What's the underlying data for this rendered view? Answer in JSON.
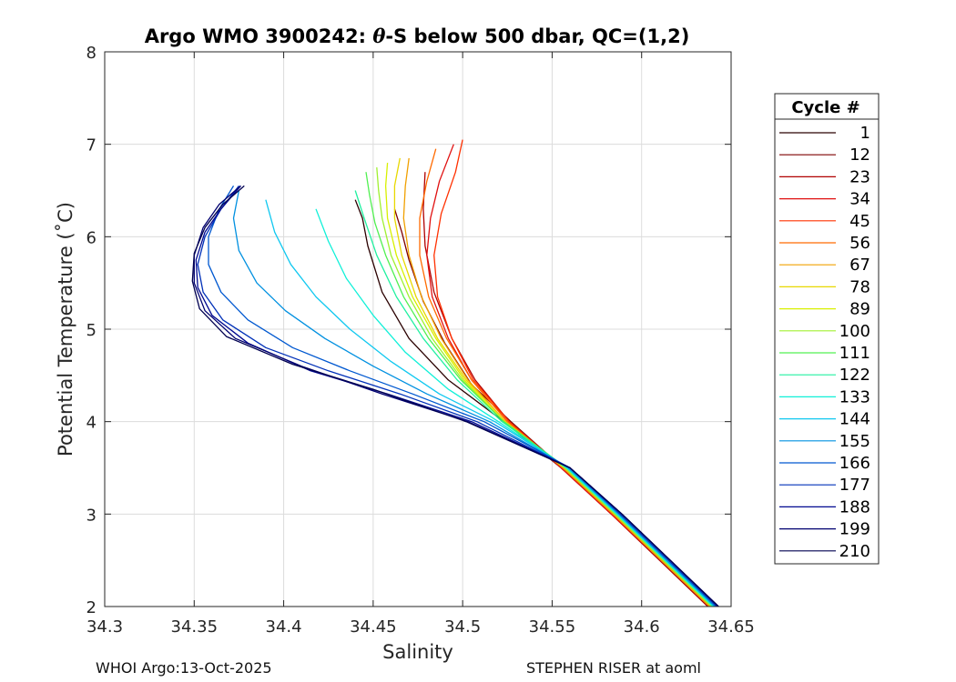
{
  "chart_data": {
    "type": "line",
    "title_prefix": "Argo WMO 3900242: ",
    "title_theta": "θ",
    "title_suffix": "-S below 500 dbar,  QC=(1,2)",
    "xlabel": "Salinity",
    "ylabel": "Potential Temperature (˚C)",
    "xlim": [
      34.3,
      34.65
    ],
    "ylim": [
      2,
      8
    ],
    "x_ticks": [
      34.3,
      34.35,
      34.4,
      34.45,
      34.5,
      34.55,
      34.6,
      34.65
    ],
    "x_tick_labels": [
      "34.3",
      "34.35",
      "34.4",
      "34.45",
      "34.5",
      "34.55",
      "34.6",
      "34.65"
    ],
    "y_ticks": [
      2,
      3,
      4,
      5,
      6,
      7,
      8
    ],
    "y_tick_labels": [
      "2",
      "3",
      "4",
      "5",
      "6",
      "7",
      "8"
    ],
    "grid": true,
    "legend": {
      "title": "Cycle #",
      "placement": "outside-right",
      "entries": [
        {
          "label": "1",
          "color": "#2a0000"
        },
        {
          "label": "12",
          "color": "#7f0000"
        },
        {
          "label": "23",
          "color": "#b00000"
        },
        {
          "label": "34",
          "color": "#e01010"
        },
        {
          "label": "45",
          "color": "#ff3000"
        },
        {
          "label": "56",
          "color": "#ff6a00"
        },
        {
          "label": "67",
          "color": "#f0a000"
        },
        {
          "label": "78",
          "color": "#e8d800"
        },
        {
          "label": "89",
          "color": "#d8f000"
        },
        {
          "label": "100",
          "color": "#a0f030"
        },
        {
          "label": "111",
          "color": "#50f050"
        },
        {
          "label": "122",
          "color": "#20f0a0"
        },
        {
          "label": "133",
          "color": "#10f0d8"
        },
        {
          "label": "144",
          "color": "#10c8f0"
        },
        {
          "label": "155",
          "color": "#0090e0"
        },
        {
          "label": "166",
          "color": "#0058d0"
        },
        {
          "label": "177",
          "color": "#0030b8"
        },
        {
          "label": "188",
          "color": "#000890"
        },
        {
          "label": "199",
          "color": "#000070"
        },
        {
          "label": "210",
          "color": "#000050"
        }
      ]
    },
    "series": [
      {
        "name": "1",
        "color": "#2a0000",
        "x": [
          34.64,
          34.612,
          34.585,
          34.555,
          34.523,
          34.492,
          34.47,
          34.455,
          34.447,
          34.444,
          34.44
        ],
        "y": [
          2.0,
          2.5,
          3.0,
          3.5,
          4.0,
          4.45,
          4.9,
          5.4,
          5.9,
          6.2,
          6.4
        ]
      },
      {
        "name": "12",
        "color": "#7f0000",
        "x": [
          34.638,
          34.611,
          34.584,
          34.556,
          34.527,
          34.505,
          34.49,
          34.478,
          34.47,
          34.466,
          34.462
        ],
        "y": [
          2.0,
          2.5,
          3.0,
          3.5,
          4.0,
          4.4,
          4.85,
          5.3,
          5.75,
          6.05,
          6.3
        ]
      },
      {
        "name": "23",
        "color": "#b00000",
        "x": [
          34.637,
          34.61,
          34.583,
          34.555,
          34.526,
          34.507,
          34.494,
          34.484,
          34.479,
          34.478,
          34.479
        ],
        "y": [
          2.0,
          2.5,
          3.0,
          3.5,
          4.0,
          4.45,
          4.9,
          5.4,
          5.9,
          6.3,
          6.7
        ]
      },
      {
        "name": "34",
        "color": "#e01010",
        "x": [
          34.638,
          34.611,
          34.583,
          34.555,
          34.525,
          34.505,
          34.492,
          34.483,
          34.48,
          34.482,
          34.487,
          34.495
        ],
        "y": [
          2.0,
          2.5,
          3.0,
          3.5,
          4.0,
          4.45,
          4.9,
          5.35,
          5.8,
          6.2,
          6.6,
          7.0
        ]
      },
      {
        "name": "45",
        "color": "#ff3000",
        "x": [
          34.639,
          34.612,
          34.584,
          34.556,
          34.526,
          34.506,
          34.494,
          34.486,
          34.484,
          34.488,
          34.496,
          34.5
        ],
        "y": [
          2.0,
          2.5,
          3.0,
          3.5,
          4.0,
          4.45,
          4.9,
          5.35,
          5.8,
          6.25,
          6.7,
          7.05
        ]
      },
      {
        "name": "56",
        "color": "#ff6a00",
        "x": [
          34.638,
          34.611,
          34.584,
          34.556,
          34.525,
          34.505,
          34.491,
          34.481,
          34.476,
          34.476,
          34.48,
          34.485
        ],
        "y": [
          2.0,
          2.5,
          3.0,
          3.5,
          4.0,
          4.45,
          4.9,
          5.35,
          5.8,
          6.2,
          6.6,
          6.95
        ]
      },
      {
        "name": "67",
        "color": "#f0a000",
        "x": [
          34.638,
          34.611,
          34.584,
          34.556,
          34.524,
          34.503,
          34.488,
          34.477,
          34.47,
          34.467,
          34.468,
          34.47
        ],
        "y": [
          2.0,
          2.5,
          3.0,
          3.5,
          4.0,
          4.45,
          4.9,
          5.35,
          5.8,
          6.2,
          6.55,
          6.85
        ]
      },
      {
        "name": "78",
        "color": "#e8d800",
        "x": [
          34.639,
          34.612,
          34.585,
          34.557,
          34.524,
          34.502,
          34.486,
          34.474,
          34.466,
          34.462,
          34.462,
          34.465
        ],
        "y": [
          2.0,
          2.5,
          3.0,
          3.5,
          4.0,
          4.45,
          4.9,
          5.35,
          5.8,
          6.2,
          6.55,
          6.85
        ]
      },
      {
        "name": "89",
        "color": "#d8f000",
        "x": [
          34.639,
          34.612,
          34.585,
          34.557,
          34.523,
          34.501,
          34.485,
          34.472,
          34.463,
          34.458,
          34.457,
          34.458
        ],
        "y": [
          2.0,
          2.5,
          3.0,
          3.5,
          4.0,
          4.45,
          4.9,
          5.35,
          5.8,
          6.2,
          6.55,
          6.8
        ]
      },
      {
        "name": "100",
        "color": "#a0f030",
        "x": [
          34.639,
          34.612,
          34.585,
          34.557,
          34.523,
          34.5,
          34.483,
          34.47,
          34.46,
          34.455,
          34.453,
          34.452
        ],
        "y": [
          2.0,
          2.5,
          3.0,
          3.5,
          4.0,
          4.45,
          4.9,
          5.35,
          5.8,
          6.2,
          6.5,
          6.75
        ]
      },
      {
        "name": "111",
        "color": "#50f050",
        "x": [
          34.64,
          34.613,
          34.586,
          34.558,
          34.523,
          34.499,
          34.481,
          34.467,
          34.457,
          34.451,
          34.448,
          34.446
        ],
        "y": [
          2.0,
          2.5,
          3.0,
          3.5,
          4.0,
          4.45,
          4.9,
          5.35,
          5.8,
          6.15,
          6.45,
          6.7
        ]
      },
      {
        "name": "122",
        "color": "#20f0a0",
        "x": [
          34.64,
          34.613,
          34.586,
          34.558,
          34.522,
          34.497,
          34.478,
          34.463,
          34.452,
          34.445,
          34.44
        ],
        "y": [
          2.0,
          2.5,
          3.0,
          3.5,
          4.0,
          4.45,
          4.9,
          5.35,
          5.8,
          6.2,
          6.5
        ]
      },
      {
        "name": "133",
        "color": "#10f0d8",
        "x": [
          34.64,
          34.613,
          34.586,
          34.558,
          34.52,
          34.492,
          34.468,
          34.45,
          34.435,
          34.425,
          34.418
        ],
        "y": [
          2.0,
          2.5,
          3.0,
          3.5,
          4.0,
          4.35,
          4.75,
          5.15,
          5.55,
          5.95,
          6.3
        ]
      },
      {
        "name": "144",
        "color": "#10c8f0",
        "x": [
          34.641,
          34.614,
          34.587,
          34.559,
          34.518,
          34.487,
          34.46,
          34.437,
          34.418,
          34.404,
          34.395,
          34.39
        ],
        "y": [
          2.0,
          2.5,
          3.0,
          3.5,
          4.0,
          4.3,
          4.65,
          5.0,
          5.35,
          5.7,
          6.05,
          6.4
        ]
      },
      {
        "name": "155",
        "color": "#0090e0",
        "x": [
          34.641,
          34.614,
          34.587,
          34.559,
          34.515,
          34.48,
          34.45,
          34.423,
          34.401,
          34.385,
          34.375,
          34.372,
          34.375
        ],
        "y": [
          2.0,
          2.5,
          3.0,
          3.5,
          4.0,
          4.3,
          4.6,
          4.9,
          5.2,
          5.5,
          5.85,
          6.2,
          6.5
        ]
      },
      {
        "name": "166",
        "color": "#0058d0",
        "x": [
          34.642,
          34.615,
          34.588,
          34.56,
          34.512,
          34.472,
          34.437,
          34.405,
          34.38,
          34.365,
          34.358,
          34.358,
          34.364,
          34.372
        ],
        "y": [
          2.0,
          2.5,
          3.0,
          3.5,
          4.0,
          4.3,
          4.55,
          4.8,
          5.1,
          5.4,
          5.7,
          6.0,
          6.3,
          6.55
        ]
      },
      {
        "name": "177",
        "color": "#0030b8",
        "x": [
          34.642,
          34.615,
          34.588,
          34.56,
          34.508,
          34.465,
          34.425,
          34.39,
          34.366,
          34.355,
          34.352,
          34.356,
          34.365,
          34.375
        ],
        "y": [
          2.0,
          2.5,
          3.0,
          3.5,
          4.0,
          4.3,
          4.55,
          4.8,
          5.1,
          5.4,
          5.7,
          6.0,
          6.3,
          6.55
        ]
      },
      {
        "name": "188",
        "color": "#000890",
        "x": [
          34.643,
          34.616,
          34.589,
          34.56,
          34.505,
          34.458,
          34.415,
          34.38,
          34.36,
          34.352,
          34.351,
          34.356,
          34.365,
          34.376
        ],
        "y": [
          2.0,
          2.5,
          3.0,
          3.5,
          4.0,
          4.3,
          4.55,
          4.85,
          5.15,
          5.45,
          5.75,
          6.05,
          6.3,
          6.55
        ]
      },
      {
        "name": "199",
        "color": "#000070",
        "x": [
          34.643,
          34.616,
          34.589,
          34.56,
          34.503,
          34.455,
          34.41,
          34.373,
          34.356,
          34.35,
          34.35,
          34.355,
          34.364,
          34.376
        ],
        "y": [
          2.0,
          2.5,
          3.0,
          3.5,
          4.0,
          4.3,
          4.6,
          4.9,
          5.2,
          5.5,
          5.8,
          6.1,
          6.35,
          6.55
        ]
      },
      {
        "name": "210",
        "color": "#000050",
        "x": [
          34.643,
          34.616,
          34.589,
          34.56,
          34.502,
          34.45,
          34.405,
          34.368,
          34.353,
          34.349,
          34.35,
          34.356,
          34.366,
          34.378
        ],
        "y": [
          2.0,
          2.5,
          3.0,
          3.5,
          4.0,
          4.35,
          4.62,
          4.92,
          5.22,
          5.52,
          5.82,
          6.1,
          6.35,
          6.55
        ]
      }
    ]
  },
  "footer": {
    "left": "WHOI Argo:13-Oct-2025",
    "right": "STEPHEN RISER at aoml"
  }
}
